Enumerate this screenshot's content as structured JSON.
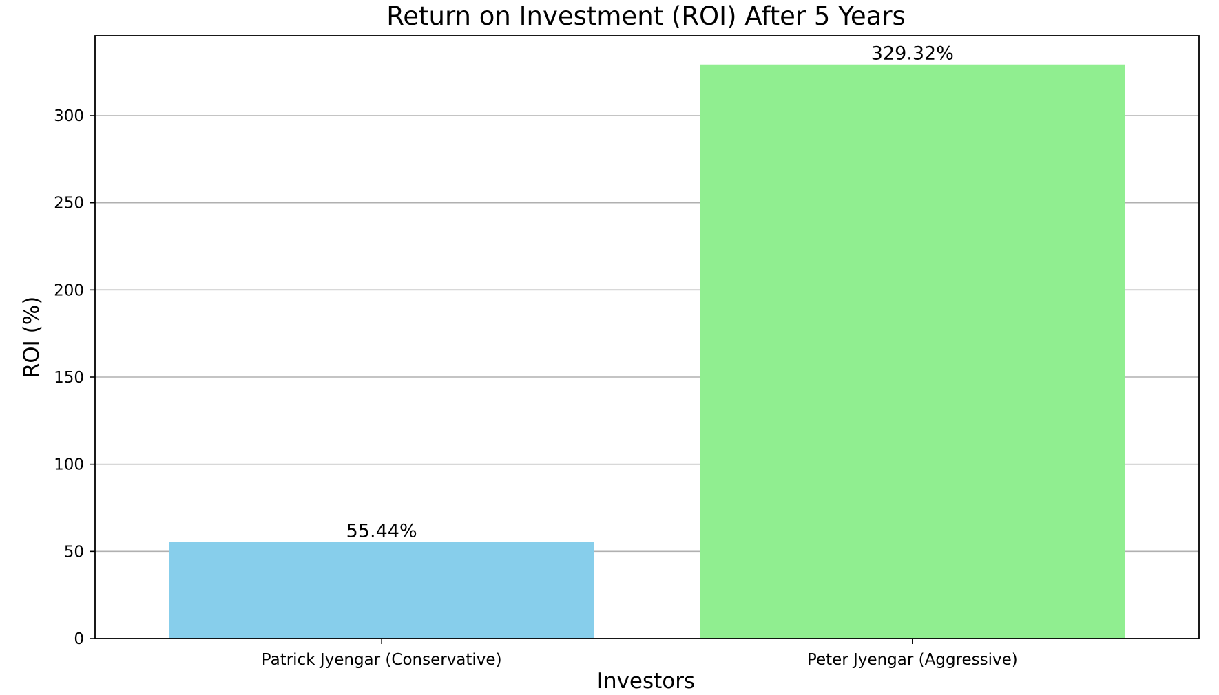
{
  "chart_data": {
    "type": "bar",
    "title": "Return on Investment (ROI) After 5 Years",
    "xlabel": "Investors",
    "ylabel": "ROI (%)",
    "categories": [
      "Patrick Jyengar (Conservative)",
      "Peter Jyengar (Aggressive)"
    ],
    "values": [
      55.44,
      329.32
    ],
    "value_labels": [
      "55.44%",
      "329.32%"
    ],
    "colors": [
      "#87ceeb",
      "#90ee90"
    ],
    "ylim": [
      0,
      345.8
    ],
    "yticks": [
      0,
      50,
      100,
      150,
      200,
      250,
      300
    ],
    "grid": "y-axis horizontal lines",
    "legend": "none"
  }
}
